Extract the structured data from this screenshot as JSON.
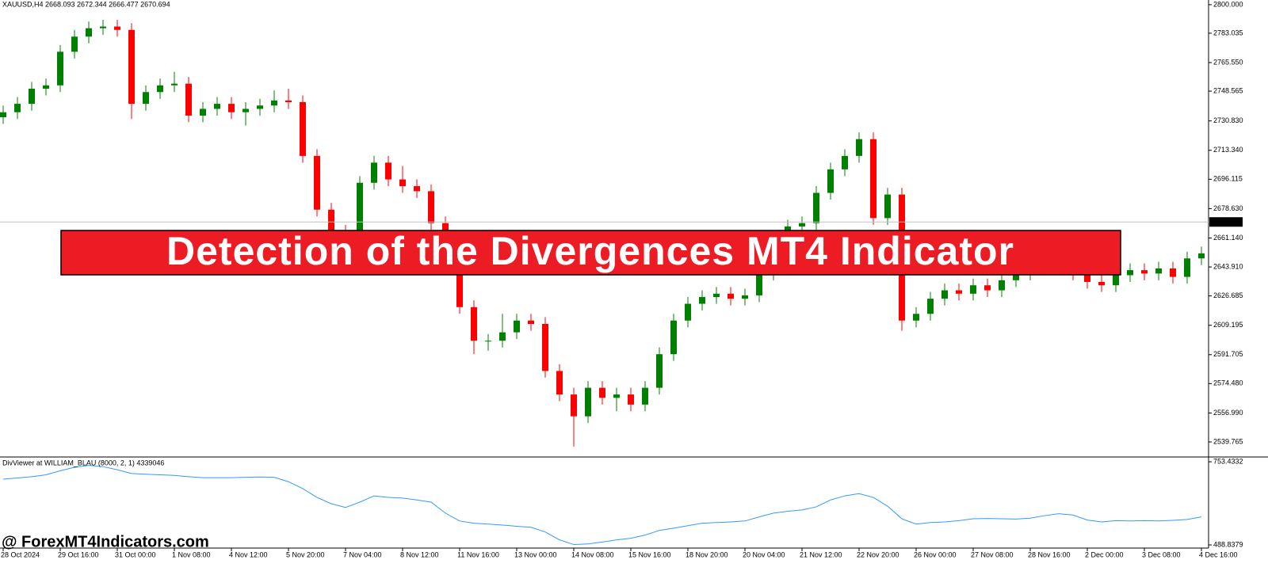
{
  "chart_data": [
    {
      "type": "candlestick",
      "title": "XAUUSD,H4 2668.093 2672.344 2666.477 2670.694",
      "categories": [
        "28 Oct 2024",
        null,
        null,
        null,
        "29 Oct 16:00",
        null,
        null,
        null,
        "31 Oct 00:00",
        null,
        null,
        null,
        "1 Nov 08:00",
        null,
        null,
        null,
        "4 Nov 12:00",
        null,
        null,
        null,
        "5 Nov 20:00",
        null,
        null,
        null,
        "7 Nov 04:00",
        null,
        null,
        null,
        "8 Nov 12:00",
        null,
        null,
        null,
        "11 Nov 16:00",
        null,
        null,
        null,
        "13 Nov 00:00",
        null,
        null,
        null,
        "14 Nov 08:00",
        null,
        null,
        null,
        "15 Nov 16:00",
        null,
        null,
        null,
        "18 Nov 20:00",
        null,
        null,
        null,
        "20 Nov 04:00",
        null,
        null,
        null,
        "21 Nov 12:00",
        null,
        null,
        null,
        "22 Nov 20:00",
        null,
        null,
        null,
        "26 Nov 00:00",
        null,
        null,
        null,
        "27 Nov 08:00",
        null,
        null,
        null,
        "28 Nov 16:00",
        null,
        null,
        null,
        "2 Dec 00:00",
        null,
        null,
        null,
        "3 Dec 08:00",
        null,
        null,
        null,
        "4 Dec 16:00"
      ],
      "series": [
        {
          "up_color": "#008000",
          "down_color": "#ff0000",
          "open": [
            2733,
            2736,
            2741,
            2750,
            2752,
            2772,
            2781,
            2786,
            2787,
            2785,
            2741,
            2748,
            2752,
            2753,
            2734,
            2738,
            2741,
            2736,
            2738,
            2740,
            2743,
            2742,
            2710,
            2678,
            2665,
            2661,
            2694,
            2706,
            2696,
            2692,
            2689,
            2670,
            2660,
            2620,
            2600,
            2600,
            2605,
            2612,
            2610,
            2582,
            2568,
            2555,
            2572,
            2566,
            2568,
            2562,
            2572,
            2592,
            2612,
            2622,
            2626,
            2628,
            2625,
            2627,
            2640,
            2655,
            2668,
            2670,
            2688,
            2702,
            2710,
            2720,
            2673,
            2687,
            2612,
            2616,
            2625,
            2630,
            2628,
            2633,
            2630,
            2636,
            2640,
            2645,
            2652,
            2648,
            2640,
            2635,
            2633,
            2639,
            2642,
            2640,
            2643,
            2638,
            2649
          ],
          "high": [
            2740,
            2745,
            2754,
            2756,
            2776,
            2785,
            2790,
            2791,
            2791,
            2789,
            2752,
            2756,
            2760,
            2757,
            2742,
            2745,
            2745,
            2742,
            2744,
            2749,
            2750,
            2746,
            2714,
            2682,
            2669,
            2698,
            2710,
            2710,
            2704,
            2696,
            2693,
            2674,
            2664,
            2624,
            2604,
            2616,
            2616,
            2616,
            2614,
            2586,
            2572,
            2576,
            2576,
            2572,
            2572,
            2576,
            2596,
            2616,
            2626,
            2630,
            2632,
            2632,
            2631,
            2644,
            2659,
            2672,
            2674,
            2692,
            2706,
            2714,
            2724,
            2724,
            2691,
            2691,
            2620,
            2629,
            2634,
            2634,
            2637,
            2637,
            2640,
            2644,
            2649,
            2656,
            2656,
            2652,
            2644,
            2639,
            2643,
            2646,
            2646,
            2647,
            2647,
            2653,
            2656
          ],
          "low": [
            2729,
            2732,
            2737,
            2746,
            2748,
            2768,
            2777,
            2782,
            2781,
            2732,
            2737,
            2744,
            2748,
            2730,
            2730,
            2734,
            2732,
            2728,
            2734,
            2736,
            2738,
            2706,
            2674,
            2661,
            2657,
            2657,
            2690,
            2692,
            2688,
            2685,
            2666,
            2656,
            2616,
            2592,
            2594,
            2596,
            2601,
            2606,
            2578,
            2564,
            2537,
            2551,
            2562,
            2558,
            2558,
            2558,
            2568,
            2588,
            2608,
            2618,
            2622,
            2621,
            2621,
            2623,
            2636,
            2651,
            2664,
            2666,
            2684,
            2698,
            2706,
            2669,
            2669,
            2606,
            2608,
            2612,
            2621,
            2624,
            2624,
            2626,
            2626,
            2632,
            2636,
            2641,
            2644,
            2636,
            2631,
            2629,
            2629,
            2635,
            2636,
            2636,
            2634,
            2634,
            2645
          ],
          "close": [
            2736,
            2741,
            2750,
            2752,
            2772,
            2781,
            2786,
            2787,
            2785,
            2741,
            2748,
            2752,
            2753,
            2734,
            2738,
            2741,
            2736,
            2738,
            2740,
            2743,
            2742,
            2710,
            2678,
            2665,
            2661,
            2694,
            2706,
            2696,
            2692,
            2689,
            2670,
            2660,
            2620,
            2600,
            2600,
            2605,
            2612,
            2610,
            2582,
            2568,
            2555,
            2572,
            2566,
            2568,
            2562,
            2572,
            2592,
            2612,
            2622,
            2626,
            2628,
            2625,
            2627,
            2640,
            2655,
            2668,
            2670,
            2688,
            2702,
            2710,
            2720,
            2673,
            2687,
            2612,
            2616,
            2625,
            2630,
            2628,
            2633,
            2630,
            2636,
            2640,
            2645,
            2652,
            2648,
            2640,
            2635,
            2633,
            2639,
            2642,
            2640,
            2643,
            2638,
            2649,
            2652
          ]
        }
      ],
      "last_price": 2670.694,
      "ylim": [
        2530.8,
        2802.8
      ],
      "yticks": [
        {
          "value": 2800,
          "label": "2800.000"
        },
        2783.035,
        {
          "value": 2765.55,
          "label": "2765.550"
        },
        2748.565,
        {
          "value": 2730.83,
          "label": "2730.830"
        },
        {
          "value": 2713.34,
          "label": "2713.340"
        },
        2696.115,
        {
          "value": 2678.63,
          "label": "2678.630"
        },
        {
          "value": 2661.14,
          "label": "2661.140"
        },
        {
          "value": 2643.91,
          "label": "2643.910"
        },
        2626.685,
        2609.195,
        2591.705,
        {
          "value": 2574.48,
          "label": "2574.480"
        },
        {
          "value": 2556.99,
          "label": "2556.990"
        },
        2539.765
      ]
    },
    {
      "type": "line",
      "title": "DivViewer at WILLIAM_BLAU (8000, 2, 1) 4339046",
      "color": "#3399ff",
      "values": [
        698,
        702,
        706,
        712,
        725,
        736,
        742,
        738,
        728,
        716,
        714,
        712,
        710,
        706,
        703,
        703,
        703,
        704,
        705,
        704,
        690,
        668,
        640,
        620,
        608,
        625,
        645,
        640,
        638,
        632,
        625,
        590,
        565,
        558,
        555,
        552,
        548,
        545,
        530,
        505,
        490,
        492,
        498,
        505,
        510,
        520,
        535,
        542,
        550,
        558,
        560,
        562,
        565,
        578,
        590,
        596,
        600,
        610,
        632,
        645,
        652,
        640,
        612,
        572,
        555,
        560,
        562,
        566,
        572,
        573,
        572,
        571,
        574,
        582,
        588,
        584,
        568,
        562,
        566,
        565,
        566,
        565,
        567,
        570,
        578
      ],
      "ylim": [
        478.8,
        766.2
      ],
      "yticks": [
        753.4332,
        488.8379
      ]
    }
  ],
  "banner": "Detection of the Divergences MT4 Indicator",
  "watermark": "@ ForexMT4Indicators.com"
}
